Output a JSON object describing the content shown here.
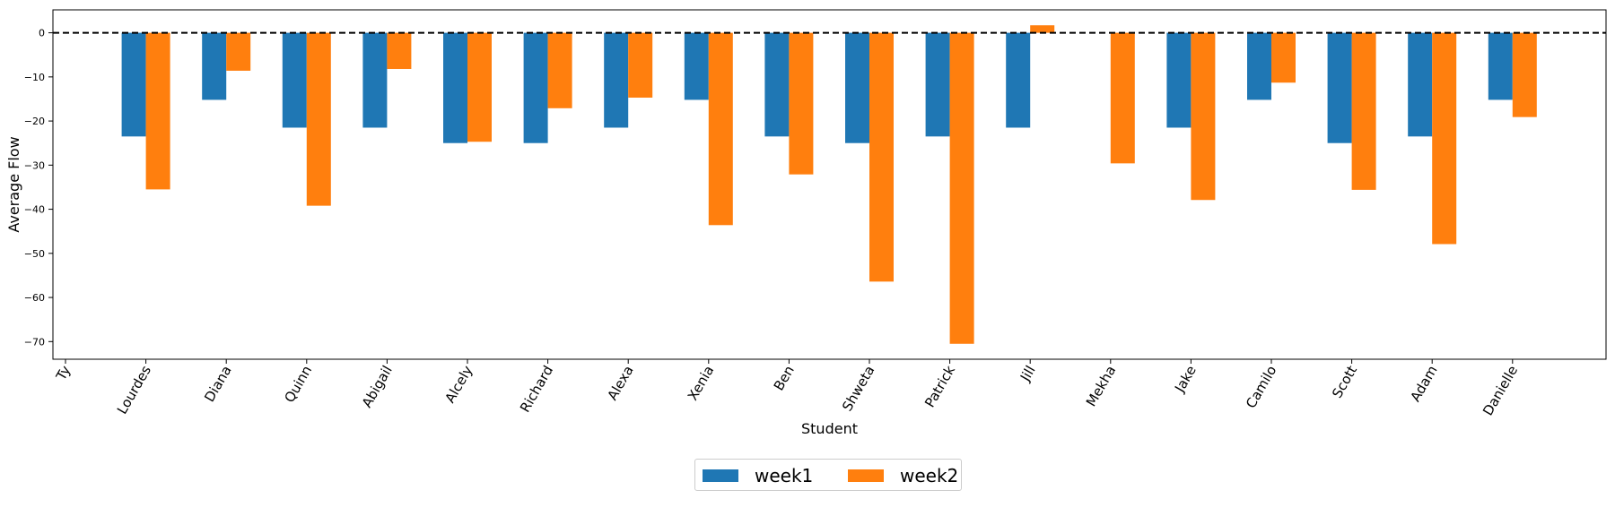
{
  "chart_data": {
    "type": "bar",
    "xlabel": "Student",
    "ylabel": "Average Flow",
    "ylim": [
      -74,
      5.2
    ],
    "yticks": [
      0,
      -10,
      -20,
      -30,
      -40,
      -50,
      -60,
      -70
    ],
    "categories": [
      "Ty",
      "Lourdes",
      "Diana",
      "Quinn",
      "Abigail",
      "Alcely",
      "Richard",
      "Alexa",
      "Xenia",
      "Ben",
      "Shweta",
      "Patrick",
      "Jill",
      "Mekha",
      "Jake",
      "Camilo",
      "Scott",
      "Adam",
      "Danielle"
    ],
    "series": [
      {
        "name": "week1",
        "color": "#1f77b4",
        "values": [
          null,
          -23.5,
          -15.2,
          -21.5,
          -21.5,
          -25.0,
          -25.0,
          -21.5,
          -15.2,
          -23.5,
          -25.0,
          -23.5,
          -21.5,
          null,
          -21.5,
          -15.2,
          -25.0,
          -23.5,
          -15.2
        ]
      },
      {
        "name": "week2",
        "color": "#ff7f0e",
        "values": [
          null,
          -35.5,
          -8.6,
          -39.2,
          -8.2,
          -24.7,
          -17.1,
          -14.7,
          -43.6,
          -32.1,
          -56.4,
          -70.5,
          1.7,
          -29.6,
          -37.9,
          -11.3,
          -35.6,
          -47.9,
          -19.1
        ]
      }
    ],
    "reference_line": {
      "y": 0,
      "style": "dashed",
      "color": "#000000"
    },
    "legend_position": "bottom-center",
    "grid": false
  }
}
